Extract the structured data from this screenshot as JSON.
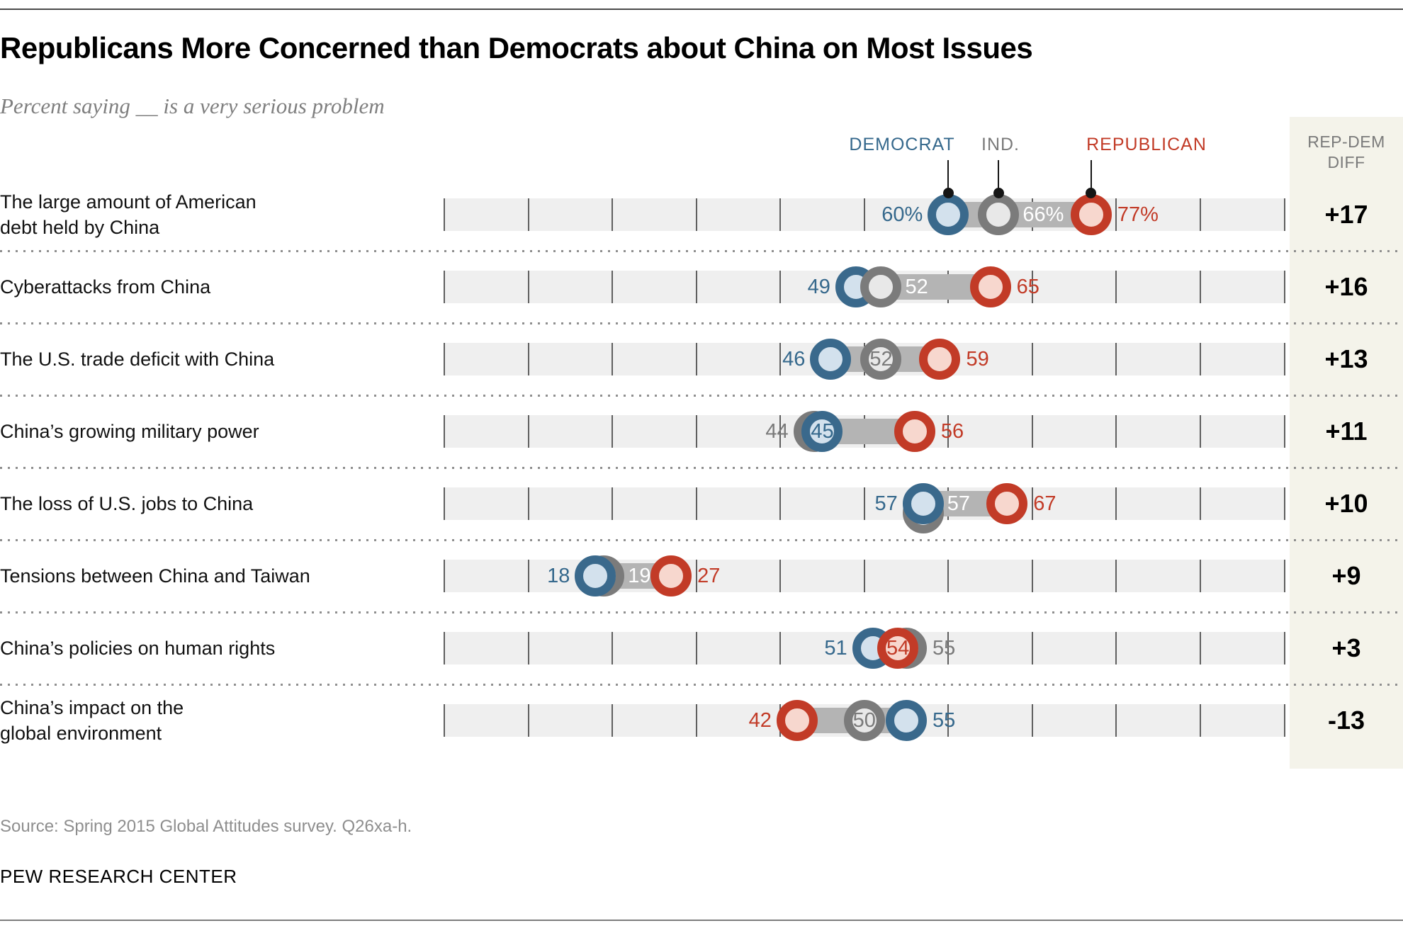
{
  "header": {
    "title": "Republicans More Concerned than Democrats about China on Most Issues",
    "subtitle": "Percent saying __ is a very serious problem"
  },
  "legend": {
    "democrat": "DEMOCRAT",
    "independent": "IND.",
    "republican": "REPUBLICAN"
  },
  "diff_column": {
    "header_line1": "REP-DEM",
    "header_line2": "DIFF"
  },
  "footer": {
    "source": "Source: Spring 2015 Global Attitudes survey. Q26xa-h.",
    "brand": "PEW RESEARCH CENTER"
  },
  "colors": {
    "dem_ring": "#3A698C",
    "dem_fill": "#D3E1ED",
    "dem_text": "#35688C",
    "ind_ring": "#7B7B7B",
    "ind_fill": "#E8E8E8",
    "ind_text": "#7A7A7A",
    "rep_ring": "#C23B27",
    "rep_fill": "#F7D7CE",
    "rep_text": "#C23B27",
    "connector": "#B4B4B4",
    "band": "#EFEFEF",
    "gridline": "#5F5F5F",
    "separator_dots": "#8F8F8F",
    "diff_bg": "#F4F3EA",
    "bar_label_text": "#FFFFFF"
  },
  "chart_data": {
    "type": "dot-plot",
    "title": "Republicans More Concerned than Democrats about China on Most Issues",
    "subtitle": "Percent saying __ is a very serious problem",
    "unit": "percent",
    "xlim": [
      0,
      100
    ],
    "gridline_step": 10,
    "grid": true,
    "legend_entries": [
      "DEMOCRAT",
      "IND.",
      "REPUBLICAN"
    ],
    "legend_position": "top",
    "diff_column_header": "REP-DEM DIFF",
    "rows": [
      {
        "category": "The large amount of American debt held by China",
        "label_lines": [
          "The large amount of American",
          "debt held by China"
        ],
        "democrat": 60,
        "independent": 66,
        "republican": 77,
        "rep_dem_diff": "+17",
        "value_labels": [
          {
            "series": "dem",
            "text": "60%",
            "pos": "left"
          },
          {
            "series": "ind",
            "text": "66%",
            "pos": "bar"
          },
          {
            "series": "rep",
            "text": "77%",
            "pos": "right"
          }
        ],
        "z_order": [
          "dem",
          "ind",
          "rep"
        ],
        "legend_pointers": true
      },
      {
        "category": "Cyberattacks from China",
        "label_lines": [
          "Cyberattacks from China"
        ],
        "democrat": 49,
        "independent": 52,
        "republican": 65,
        "rep_dem_diff": "+16",
        "value_labels": [
          {
            "series": "dem",
            "text": "49",
            "pos": "left"
          },
          {
            "series": "ind",
            "text": "52",
            "pos": "bar"
          },
          {
            "series": "rep",
            "text": "65",
            "pos": "right"
          }
        ],
        "z_order": [
          "dem",
          "ind",
          "rep"
        ]
      },
      {
        "category": "The U.S. trade deficit with China",
        "label_lines": [
          "The U.S. trade deficit with China"
        ],
        "democrat": 46,
        "independent": 52,
        "republican": 59,
        "rep_dem_diff": "+13",
        "value_labels": [
          {
            "series": "dem",
            "text": "46",
            "pos": "left"
          },
          {
            "series": "ind",
            "text": "52",
            "pos": "inside"
          },
          {
            "series": "rep",
            "text": "59",
            "pos": "right"
          }
        ],
        "z_order": [
          "dem",
          "ind",
          "rep"
        ]
      },
      {
        "category": "China’s growing military power",
        "label_lines": [
          "China’s growing military power"
        ],
        "democrat": 45,
        "independent": 44,
        "republican": 56,
        "rep_dem_diff": "+11",
        "value_labels": [
          {
            "series": "ind",
            "text": "44",
            "pos": "left"
          },
          {
            "series": "dem",
            "text": "45",
            "pos": "inside"
          },
          {
            "series": "rep",
            "text": "56",
            "pos": "right"
          }
        ],
        "z_order": [
          "ind",
          "dem",
          "rep"
        ]
      },
      {
        "category": "The loss of U.S. jobs to China",
        "label_lines": [
          "The loss of U.S. jobs to China"
        ],
        "democrat": 57,
        "independent": 57,
        "republican": 67,
        "rep_dem_diff": "+10",
        "value_labels": [
          {
            "series": "dem",
            "text": "57",
            "pos": "left"
          },
          {
            "series": "ind",
            "text": "57",
            "pos": "bar"
          },
          {
            "series": "rep",
            "text": "67",
            "pos": "right"
          }
        ],
        "z_order": [
          "ind",
          "dem",
          "rep"
        ],
        "ind_dy": 13
      },
      {
        "category": "Tensions between China and Taiwan",
        "label_lines": [
          "Tensions between China and Taiwan"
        ],
        "democrat": 18,
        "independent": 19,
        "republican": 27,
        "rep_dem_diff": "+9",
        "value_labels": [
          {
            "series": "dem",
            "text": "18",
            "pos": "left"
          },
          {
            "series": "ind",
            "text": "19",
            "pos": "bar"
          },
          {
            "series": "rep",
            "text": "27",
            "pos": "right"
          }
        ],
        "z_order": [
          "ind",
          "dem",
          "rep"
        ]
      },
      {
        "category": "China’s policies on human rights",
        "label_lines": [
          "China’s policies on human rights"
        ],
        "democrat": 51,
        "independent": 55,
        "republican": 54,
        "rep_dem_diff": "+3",
        "value_labels": [
          {
            "series": "dem",
            "text": "51",
            "pos": "left"
          },
          {
            "series": "rep",
            "text": "54",
            "pos": "inside"
          },
          {
            "series": "ind",
            "text": "55",
            "pos": "right"
          }
        ],
        "z_order": [
          "ind",
          "dem",
          "rep"
        ]
      },
      {
        "category": "China’s impact on the global environment",
        "label_lines": [
          "China’s impact on the",
          "global environment"
        ],
        "democrat": 55,
        "independent": 50,
        "republican": 42,
        "rep_dem_diff": "-13",
        "value_labels": [
          {
            "series": "rep",
            "text": "42",
            "pos": "left"
          },
          {
            "series": "ind",
            "text": "50",
            "pos": "inside"
          },
          {
            "series": "dem",
            "text": "55",
            "pos": "right"
          }
        ],
        "z_order": [
          "ind",
          "dem",
          "rep"
        ]
      }
    ]
  }
}
